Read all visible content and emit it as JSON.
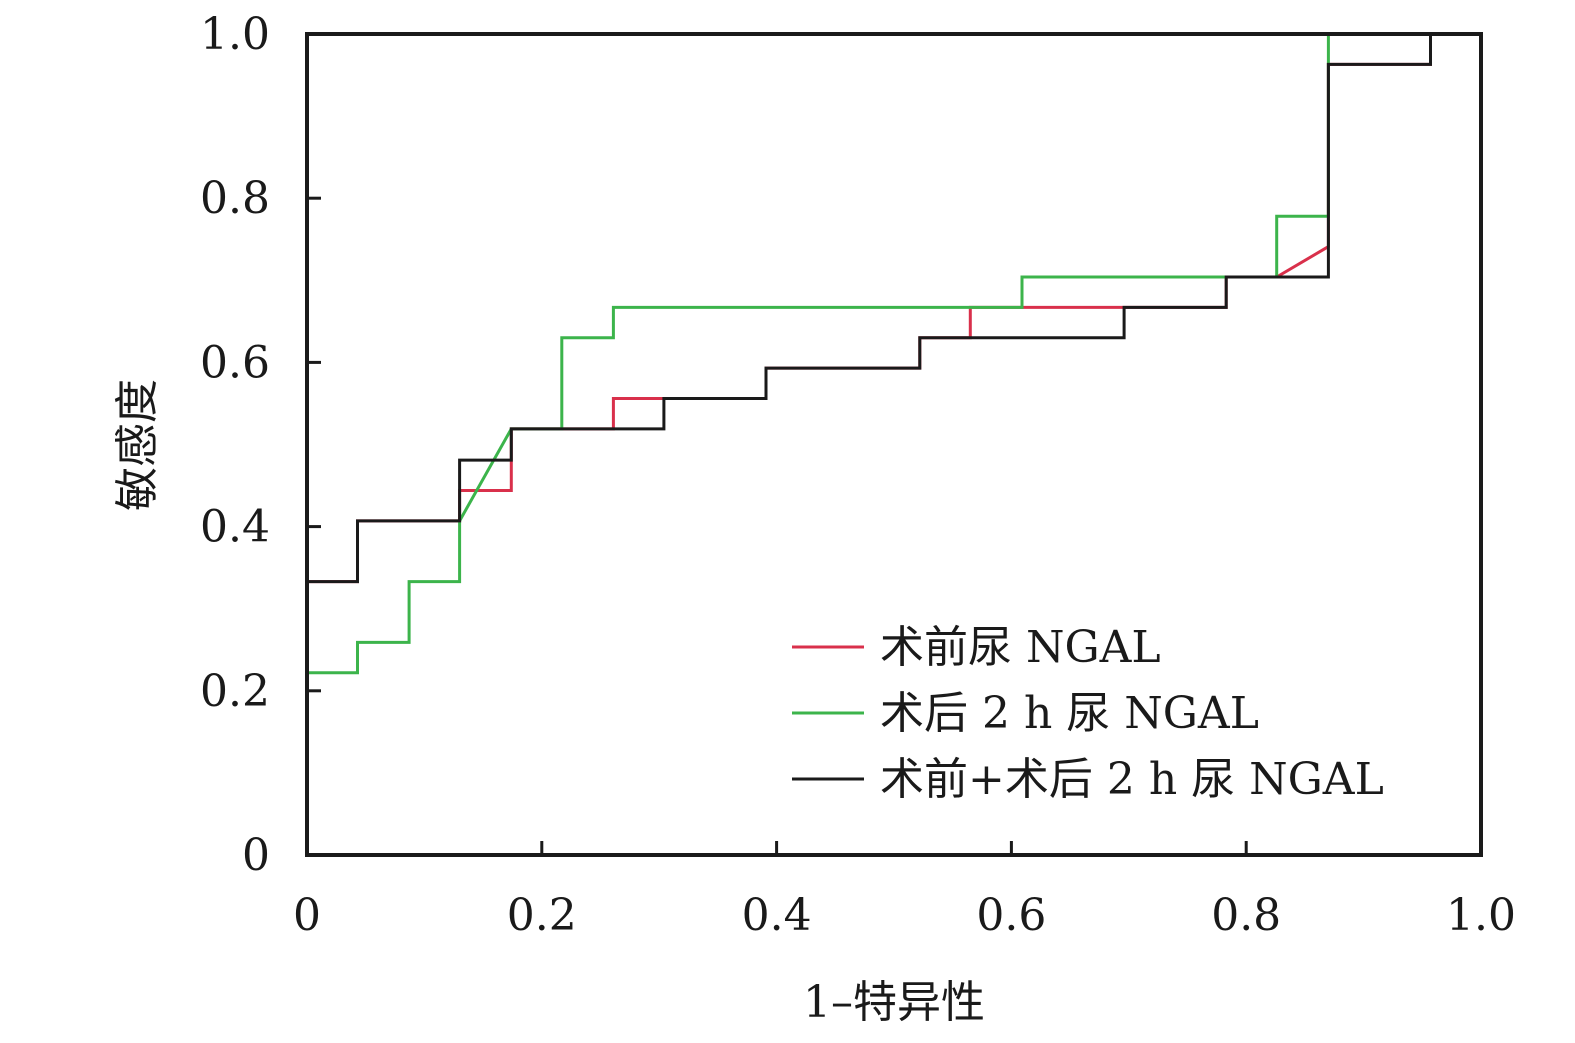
{
  "chart_data": {
    "type": "line",
    "title": "",
    "xlabel": "1–特异性",
    "ylabel": "敏感度",
    "xlim": [
      0,
      1
    ],
    "ylim": [
      0,
      1
    ],
    "grid": false,
    "legend_position": "bottom-right",
    "x_ticks": [
      {
        "value": 0,
        "label": "0"
      },
      {
        "value": 0.2,
        "label": "0.2"
      },
      {
        "value": 0.4,
        "label": "0.4"
      },
      {
        "value": 0.6,
        "label": "0.6"
      },
      {
        "value": 0.8,
        "label": "0.8"
      },
      {
        "value": 1.0,
        "label": "1.0"
      }
    ],
    "y_ticks": [
      {
        "value": 0,
        "label": "0"
      },
      {
        "value": 0.2,
        "label": "0.2"
      },
      {
        "value": 0.4,
        "label": "0.4"
      },
      {
        "value": 0.6,
        "label": "0.6"
      },
      {
        "value": 0.8,
        "label": "0.8"
      },
      {
        "value": 1.0,
        "label": "1.0"
      }
    ],
    "series": [
      {
        "name": "术前尿 NGAL",
        "color": "#d9304b",
        "points": [
          [
            0,
            0
          ],
          [
            0,
            0.333
          ],
          [
            0.043,
            0.333
          ],
          [
            0.043,
            0.407
          ],
          [
            0.13,
            0.407
          ],
          [
            0.13,
            0.444
          ],
          [
            0.174,
            0.444
          ],
          [
            0.174,
            0.519
          ],
          [
            0.261,
            0.519
          ],
          [
            0.261,
            0.556
          ],
          [
            0.304,
            0.556
          ],
          [
            0.391,
            0.556
          ],
          [
            0.391,
            0.593
          ],
          [
            0.522,
            0.593
          ],
          [
            0.522,
            0.63
          ],
          [
            0.565,
            0.63
          ],
          [
            0.565,
            0.667
          ],
          [
            0.696,
            0.667
          ],
          [
            0.783,
            0.667
          ],
          [
            0.783,
            0.704
          ],
          [
            0.826,
            0.704
          ],
          [
            0.87,
            0.741
          ],
          [
            0.87,
            0.963
          ],
          [
            0.957,
            0.963
          ],
          [
            0.957,
            1.0
          ],
          [
            1.0,
            1.0
          ]
        ]
      },
      {
        "name": "术后 2 h 尿 NGAL",
        "color": "#3cb44b",
        "points": [
          [
            0,
            0
          ],
          [
            0,
            0.222
          ],
          [
            0.043,
            0.222
          ],
          [
            0.043,
            0.259
          ],
          [
            0.087,
            0.259
          ],
          [
            0.087,
            0.333
          ],
          [
            0.13,
            0.333
          ],
          [
            0.13,
            0.407
          ],
          [
            0.174,
            0.519
          ],
          [
            0.217,
            0.519
          ],
          [
            0.217,
            0.63
          ],
          [
            0.261,
            0.63
          ],
          [
            0.261,
            0.667
          ],
          [
            0.609,
            0.667
          ],
          [
            0.609,
            0.704
          ],
          [
            0.826,
            0.704
          ],
          [
            0.826,
            0.778
          ],
          [
            0.87,
            0.778
          ],
          [
            0.87,
            1.0
          ],
          [
            1.0,
            1.0
          ]
        ]
      },
      {
        "name": "术前+术后 2 h 尿 NGAL",
        "color": "#1a1a1a",
        "points": [
          [
            0,
            0
          ],
          [
            0,
            0.333
          ],
          [
            0.043,
            0.333
          ],
          [
            0.043,
            0.407
          ],
          [
            0.13,
            0.407
          ],
          [
            0.13,
            0.481
          ],
          [
            0.174,
            0.481
          ],
          [
            0.174,
            0.519
          ],
          [
            0.304,
            0.519
          ],
          [
            0.304,
            0.556
          ],
          [
            0.391,
            0.556
          ],
          [
            0.391,
            0.593
          ],
          [
            0.522,
            0.593
          ],
          [
            0.522,
            0.63
          ],
          [
            0.696,
            0.63
          ],
          [
            0.696,
            0.667
          ],
          [
            0.783,
            0.667
          ],
          [
            0.783,
            0.704
          ],
          [
            0.87,
            0.704
          ],
          [
            0.87,
            0.963
          ],
          [
            0.957,
            0.963
          ],
          [
            0.957,
            1.0
          ],
          [
            1.0,
            1.0
          ]
        ]
      }
    ]
  }
}
